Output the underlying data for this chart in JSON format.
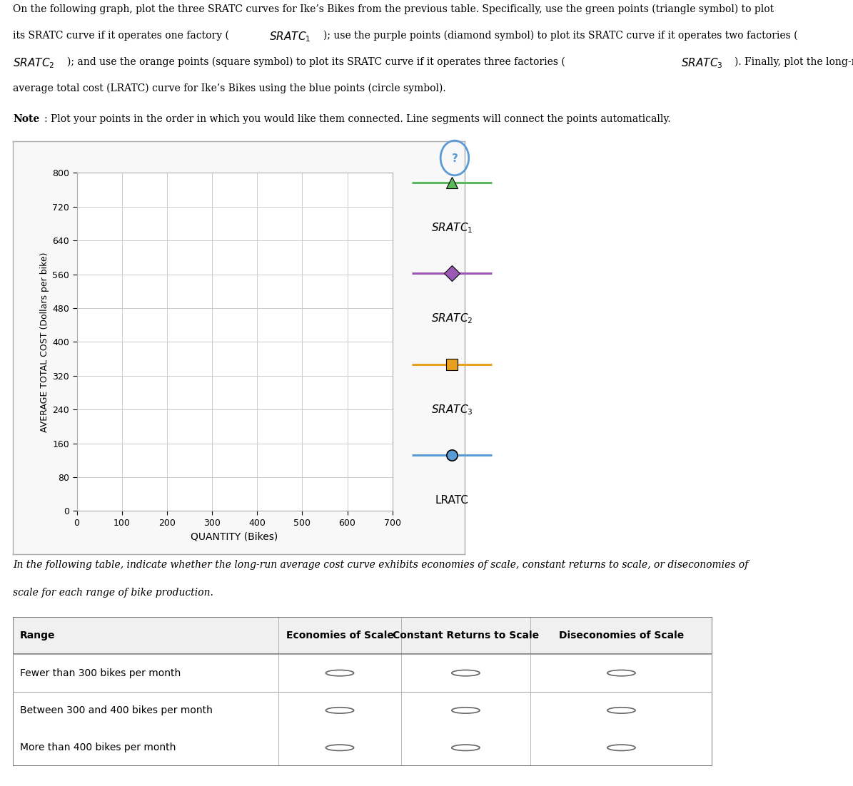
{
  "chart": {
    "xlim": [
      0,
      700
    ],
    "ylim": [
      0,
      800
    ],
    "xticks": [
      0,
      100,
      200,
      300,
      400,
      500,
      600,
      700
    ],
    "yticks": [
      0,
      80,
      160,
      240,
      320,
      400,
      480,
      560,
      640,
      720,
      800
    ],
    "xlabel": "QUANTITY (Bikes)",
    "ylabel": "AVERAGE TOTAL COST (Dollars per bike)",
    "grid_color": "#cccccc",
    "plot_bg_color": "#ffffff",
    "panel_bg_color": "#f8f8f8"
  },
  "legend": {
    "sratc1_color": "#5cb85c",
    "sratc2_color": "#9b59b6",
    "sratc3_color": "#e8a020",
    "lratc_color": "#5b9bd5"
  },
  "question_icon_color": "#5b9bd5",
  "table_headers": [
    "Range",
    "Economies of Scale",
    "Constant Returns to Scale",
    "Diseconomies of Scale"
  ],
  "table_rows": [
    "Fewer than 300 bikes per month",
    "Between 300 and 400 bikes per month",
    "More than 400 bikes per month"
  ]
}
